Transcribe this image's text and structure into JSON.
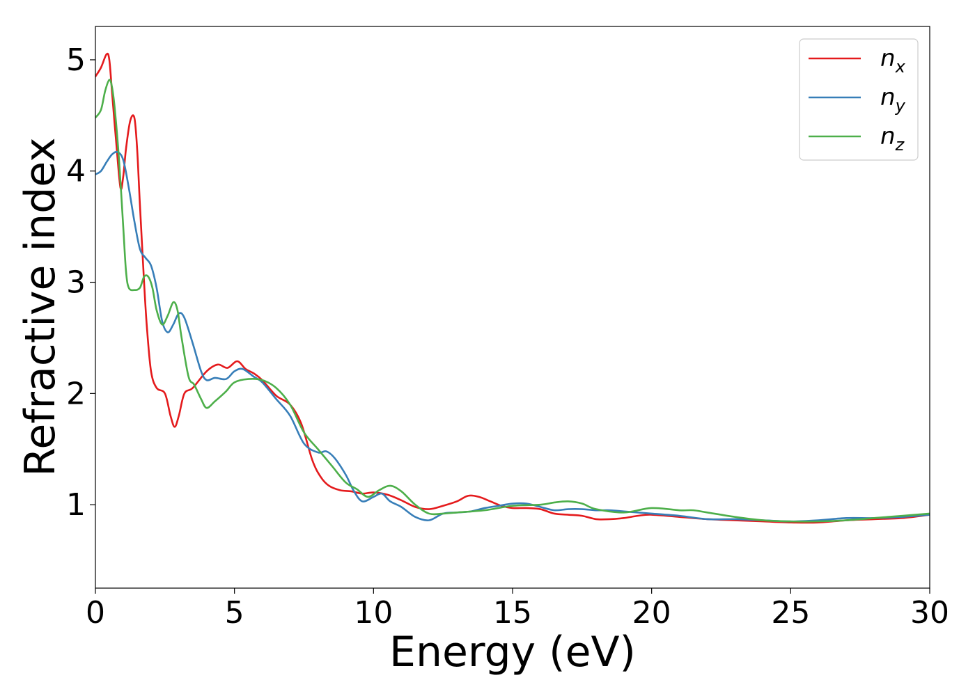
{
  "chart_data": {
    "type": "line",
    "xlabel": "Energy (eV)",
    "ylabel": "Refractive index",
    "xlim": [
      0,
      30
    ],
    "ylim": [
      0.25,
      5.3
    ],
    "xticks": [
      0,
      5,
      10,
      15,
      20,
      25,
      30
    ],
    "xtick_labels": [
      "0",
      "5",
      "10",
      "15",
      "20",
      "25",
      "30"
    ],
    "yticks": [
      1,
      2,
      3,
      4,
      5
    ],
    "ytick_labels": [
      "1",
      "2",
      "3",
      "4",
      "5"
    ],
    "grid": false,
    "legend_position": "top-right",
    "series": [
      {
        "name": "n_x",
        "legend_main": "n",
        "legend_sub": "x",
        "color": "#e41a1c",
        "x": [
          0,
          0.2,
          0.4,
          0.5,
          0.6,
          0.75,
          0.9,
          1.0,
          1.1,
          1.25,
          1.4,
          1.5,
          1.6,
          1.75,
          1.85,
          2.0,
          2.2,
          2.5,
          2.7,
          2.85,
          3.0,
          3.2,
          3.5,
          4.0,
          4.4,
          4.75,
          5.1,
          5.4,
          5.7,
          6.0,
          6.5,
          7.0,
          7.4,
          7.8,
          8.1,
          8.4,
          8.8,
          9.2,
          9.6,
          10.0,
          10.5,
          11.0,
          11.5,
          12.0,
          12.5,
          13.0,
          13.4,
          13.8,
          14.2,
          14.6,
          15.0,
          15.5,
          16.0,
          16.5,
          17.0,
          17.5,
          18.0,
          18.5,
          19.0,
          19.5,
          20.0,
          21.0,
          22.0,
          23.0,
          24.0,
          25.0,
          26.0,
          27.0,
          28.0,
          29.0,
          30.0
        ],
        "y": [
          4.85,
          4.93,
          5.05,
          5.0,
          4.7,
          4.25,
          3.85,
          3.95,
          4.2,
          4.45,
          4.48,
          4.2,
          3.7,
          3.0,
          2.6,
          2.2,
          2.05,
          2.0,
          1.8,
          1.7,
          1.8,
          2.0,
          2.05,
          2.2,
          2.26,
          2.23,
          2.29,
          2.22,
          2.18,
          2.12,
          1.98,
          1.9,
          1.73,
          1.4,
          1.25,
          1.17,
          1.13,
          1.12,
          1.1,
          1.11,
          1.09,
          1.04,
          0.98,
          0.96,
          0.99,
          1.03,
          1.08,
          1.07,
          1.03,
          0.99,
          0.97,
          0.97,
          0.96,
          0.92,
          0.91,
          0.9,
          0.87,
          0.87,
          0.88,
          0.9,
          0.91,
          0.89,
          0.87,
          0.86,
          0.85,
          0.84,
          0.84,
          0.86,
          0.87,
          0.88,
          0.91
        ]
      },
      {
        "name": "n_y",
        "legend_main": "n",
        "legend_sub": "y",
        "color": "#377eb8",
        "x": [
          0,
          0.2,
          0.4,
          0.6,
          0.8,
          1.0,
          1.2,
          1.4,
          1.6,
          1.8,
          2.0,
          2.2,
          2.4,
          2.6,
          2.8,
          3.0,
          3.2,
          3.5,
          3.8,
          4.0,
          4.3,
          4.7,
          5.0,
          5.3,
          5.7,
          6.0,
          6.5,
          7.0,
          7.5,
          8.0,
          8.3,
          8.6,
          9.0,
          9.3,
          9.6,
          10.0,
          10.3,
          10.6,
          11.0,
          11.5,
          12.0,
          12.5,
          13.0,
          13.5,
          14.0,
          14.5,
          15.0,
          15.5,
          16.0,
          16.5,
          17.0,
          17.5,
          18.0,
          18.5,
          19.0,
          19.5,
          20.0,
          21.0,
          22.0,
          23.0,
          24.0,
          25.0,
          26.0,
          27.0,
          28.0,
          29.0,
          30.0
        ],
        "y": [
          3.97,
          4.0,
          4.08,
          4.15,
          4.17,
          4.1,
          3.85,
          3.55,
          3.3,
          3.22,
          3.15,
          2.95,
          2.65,
          2.55,
          2.62,
          2.72,
          2.68,
          2.45,
          2.2,
          2.12,
          2.14,
          2.13,
          2.2,
          2.22,
          2.15,
          2.1,
          1.95,
          1.8,
          1.55,
          1.47,
          1.48,
          1.42,
          1.27,
          1.12,
          1.03,
          1.07,
          1.1,
          1.03,
          0.98,
          0.89,
          0.86,
          0.92,
          0.93,
          0.94,
          0.97,
          0.99,
          1.01,
          1.01,
          0.98,
          0.95,
          0.96,
          0.96,
          0.95,
          0.95,
          0.94,
          0.93,
          0.92,
          0.9,
          0.87,
          0.87,
          0.86,
          0.85,
          0.86,
          0.88,
          0.88,
          0.89,
          0.91
        ]
      },
      {
        "name": "n_z",
        "legend_main": "n",
        "legend_sub": "z",
        "color": "#4daf4a",
        "x": [
          0,
          0.2,
          0.35,
          0.5,
          0.6,
          0.7,
          0.85,
          1.0,
          1.1,
          1.2,
          1.4,
          1.6,
          1.75,
          1.9,
          2.05,
          2.2,
          2.4,
          2.6,
          2.8,
          2.95,
          3.1,
          3.35,
          3.55,
          3.8,
          4.0,
          4.3,
          4.7,
          5.0,
          5.5,
          6.0,
          6.5,
          7.0,
          7.5,
          8.0,
          8.5,
          9.0,
          9.4,
          9.8,
          10.2,
          10.6,
          11.0,
          11.5,
          12.0,
          12.5,
          13.0,
          14.0,
          15.0,
          16.0,
          16.5,
          17.0,
          17.5,
          18.0,
          19.0,
          20.0,
          21.0,
          21.5,
          22.0,
          23.0,
          24.0,
          25.0,
          26.0,
          27.0,
          28.0,
          29.0,
          30.0
        ],
        "y": [
          4.48,
          4.55,
          4.72,
          4.82,
          4.75,
          4.55,
          4.1,
          3.5,
          3.1,
          2.95,
          2.93,
          2.95,
          3.05,
          3.05,
          2.95,
          2.75,
          2.62,
          2.7,
          2.82,
          2.75,
          2.5,
          2.15,
          2.08,
          1.95,
          1.87,
          1.93,
          2.02,
          2.1,
          2.13,
          2.12,
          2.05,
          1.9,
          1.65,
          1.5,
          1.35,
          1.2,
          1.14,
          1.07,
          1.13,
          1.17,
          1.12,
          1.0,
          0.92,
          0.92,
          0.93,
          0.95,
          0.99,
          1.0,
          1.02,
          1.03,
          1.01,
          0.96,
          0.93,
          0.97,
          0.95,
          0.95,
          0.93,
          0.89,
          0.86,
          0.85,
          0.85,
          0.86,
          0.88,
          0.9,
          0.92
        ]
      }
    ]
  }
}
